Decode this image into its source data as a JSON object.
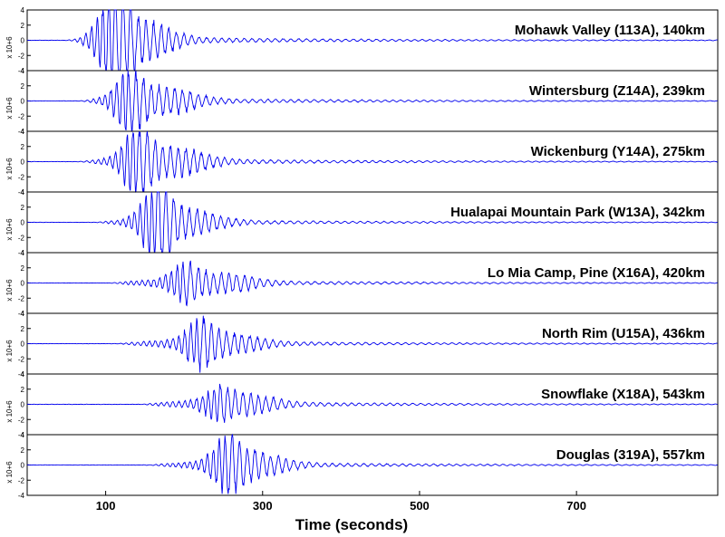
{
  "chart_data": {
    "type": "line",
    "xlabel": "Time (seconds)",
    "x_ticks": [
      100,
      300,
      500,
      700
    ],
    "xlim": [
      0,
      880
    ],
    "ylim": [
      -4,
      4
    ],
    "y_ticks": [
      4,
      2,
      0,
      -2,
      -4
    ],
    "y_unit_label": "x 10+6",
    "line_color": "#0000ee",
    "grid": false,
    "panels": [
      {
        "label": "Mohawk Valley (113A), 140km",
        "onset": 45,
        "pulse_center": 110,
        "pulse_amp": 4.6,
        "surface_center": 145,
        "surface_amp": 2.2,
        "coda_amp": 0.35
      },
      {
        "label": "Wintersburg (Z14A), 239km",
        "onset": 60,
        "pulse_center": 130,
        "pulse_amp": 3.0,
        "surface_center": 175,
        "surface_amp": 1.4,
        "coda_amp": 0.3
      },
      {
        "label": "Wickenburg (Y14A), 275km",
        "onset": 60,
        "pulse_center": 140,
        "pulse_amp": 3.6,
        "surface_center": 190,
        "surface_amp": 1.5,
        "coda_amp": 0.3
      },
      {
        "label": "Hualapai Mountain Park (W13A), 342km",
        "onset": 80,
        "pulse_center": 165,
        "pulse_amp": 4.2,
        "surface_center": 205,
        "surface_amp": 1.4,
        "coda_amp": 0.25
      },
      {
        "label": "Lo Mia Camp, Pine (X16A), 420km",
        "onset": 100,
        "pulse_center": 200,
        "pulse_amp": 2.0,
        "surface_center": 250,
        "surface_amp": 1.0,
        "coda_amp": 0.25
      },
      {
        "label": "North Rim (U15A), 436km",
        "onset": 110,
        "pulse_center": 220,
        "pulse_amp": 2.4,
        "surface_center": 260,
        "surface_amp": 1.0,
        "coda_amp": 0.25
      },
      {
        "label": "Snowflake (X18A), 543km",
        "onset": 140,
        "pulse_center": 245,
        "pulse_amp": 1.5,
        "surface_center": 280,
        "surface_amp": 1.0,
        "coda_amp": 0.25
      },
      {
        "label": "Douglas (319A), 557km",
        "onset": 150,
        "pulse_center": 255,
        "pulse_amp": 2.6,
        "surface_center": 290,
        "surface_amp": 1.3,
        "coda_amp": 0.25
      }
    ]
  }
}
